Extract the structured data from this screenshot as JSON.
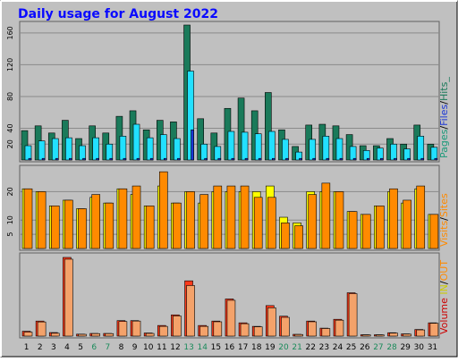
{
  "chart_data": {
    "type": "bar",
    "title": "Daily usage for August 2022",
    "days": [
      "1",
      "2",
      "3",
      "4",
      "5",
      "6",
      "7",
      "8",
      "9",
      "10",
      "11",
      "12",
      "13",
      "14",
      "15",
      "16",
      "17",
      "18",
      "19",
      "20",
      "21",
      "22",
      "23",
      "24",
      "25",
      "26",
      "27",
      "28",
      "29",
      "30",
      "31"
    ],
    "weekend_days": [
      "6",
      "7",
      "13",
      "14",
      "20",
      "21",
      "27",
      "28"
    ],
    "panels": [
      {
        "name": "top",
        "ylim": [
          0,
          170
        ],
        "yticks": [
          "20",
          "40",
          "80",
          "120",
          "160"
        ],
        "series": [
          {
            "name": "Hits",
            "color": "#1a7a5a",
            "values": [
              37,
              43,
              34,
              50,
              27,
              43,
              34,
              55,
              62,
              38,
              50,
              48,
              170,
              52,
              34,
              65,
              78,
              62,
              85,
              38,
              17,
              44,
              45,
              43,
              32,
              18,
              18,
              27,
              20,
              44,
              20
            ]
          },
          {
            "name": "Files",
            "color": "#22e0ff",
            "values": [
              18,
              24,
              27,
              28,
              18,
              28,
              20,
              30,
              45,
              28,
              32,
              27,
              112,
              20,
              17,
              36,
              35,
              33,
              36,
              26,
              10,
              26,
              30,
              27,
              17,
              12,
              15,
              20,
              14,
              30,
              16
            ]
          },
          {
            "name": "Pages",
            "color": "#1a36d6",
            "values": [
              2,
              2,
              2,
              2,
              2,
              2,
              2,
              2,
              2,
              2,
              2,
              2,
              38,
              2,
              2,
              2,
              2,
              2,
              2,
              2,
              2,
              2,
              2,
              2,
              2,
              2,
              2,
              2,
              2,
              2,
              2
            ]
          }
        ],
        "legend": [
          {
            "text": "Pages",
            "color": "#1a9a7a"
          },
          {
            "text": "/",
            "color": "#000000"
          },
          {
            "text": "Files",
            "color": "#1a36d6"
          },
          {
            "text": "/",
            "color": "#000000"
          },
          {
            "text": "Hits_",
            "color": "#1a7a5a"
          }
        ]
      },
      {
        "name": "middle",
        "ylim": [
          0,
          28
        ],
        "yticks": [
          "5",
          "10",
          "20"
        ],
        "series": [
          {
            "name": "Visits",
            "color": "#ffff00",
            "values": [
              21,
              20,
              15,
              17,
              14,
              18,
              16,
              21,
              19,
              15,
              22,
              16,
              20,
              16,
              20,
              20,
              20,
              20,
              22,
              11,
              9,
              20,
              20,
              20,
              13,
              12,
              15,
              20,
              16,
              21,
              12
            ]
          },
          {
            "name": "Sites",
            "color": "#ff8a00",
            "values": [
              21,
              20,
              15,
              17,
              14,
              19,
              16,
              21,
              22,
              15,
              27,
              16,
              20,
              19,
              22,
              22,
              22,
              18,
              18,
              9,
              8,
              19,
              23,
              20,
              13,
              12,
              15,
              21,
              17,
              22,
              12
            ]
          }
        ],
        "legend": [
          {
            "text": "Visits",
            "color": "#ff8a00"
          },
          {
            "text": "/",
            "color": "#000000"
          },
          {
            "text": "Sites",
            "color": "#ff8a00"
          }
        ]
      },
      {
        "name": "bottom",
        "ylim": [
          0,
          900
        ],
        "yticks": [
          "200k",
          "500k",
          "800k"
        ],
        "series": [
          {
            "name": "IN",
            "color": "#ff3a1a",
            "values": [
              55,
              170,
              40,
              890,
              22,
              30,
              30,
              175,
              175,
              35,
              120,
              240,
              625,
              120,
              170,
              420,
              150,
              110,
              345,
              225,
              20,
              170,
              90,
              190,
              490,
              15,
              15,
              38,
              25,
              75,
              150
            ]
          },
          {
            "name": "OUT",
            "color": "#f4a26a",
            "values": [
              45,
              160,
              32,
              870,
              20,
              28,
              28,
              165,
              170,
              30,
              110,
              228,
              572,
              110,
              162,
              405,
              140,
              105,
              320,
              212,
              18,
              162,
              86,
              180,
              480,
              14,
              14,
              34,
              22,
              70,
              145
            ]
          }
        ],
        "legend": [
          {
            "text": "Volume",
            "color": "#cc0000"
          },
          {
            "text": "IN",
            "color": "#cccc00"
          },
          {
            "text": "/",
            "color": "#000000"
          },
          {
            "text": "OUT",
            "color": "#ff8a00"
          }
        ]
      }
    ]
  }
}
